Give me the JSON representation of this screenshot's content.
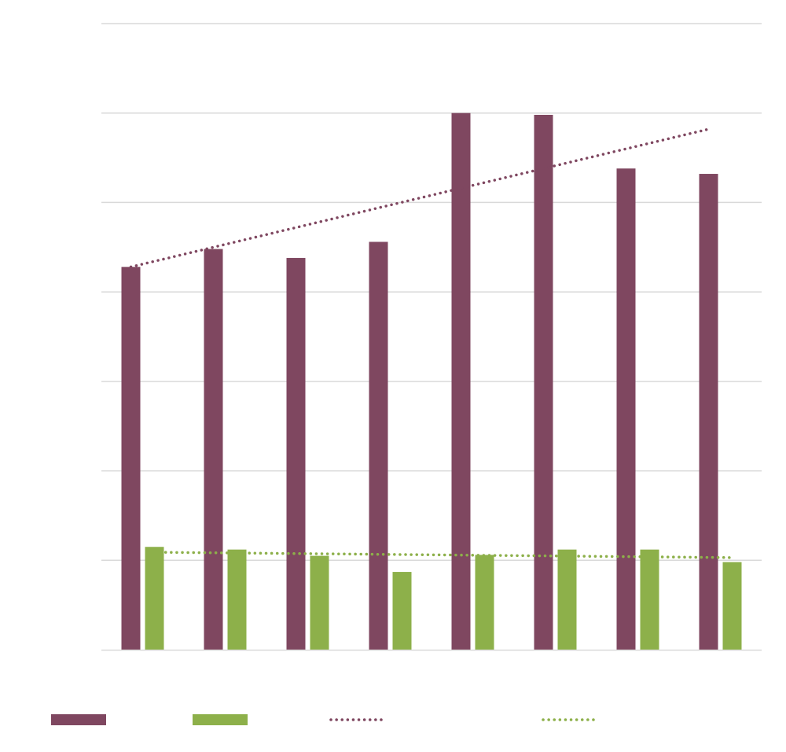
{
  "chart_data": {
    "type": "bar",
    "title": "",
    "xlabel": "",
    "ylabel": "",
    "categories": [
      "",
      "",
      "",
      "",
      "",
      "",
      "",
      ""
    ],
    "ylim": [
      0,
      7
    ],
    "grid": true,
    "series": [
      {
        "name": "",
        "color": "#7f4760",
        "values": [
          4.28,
          4.48,
          4.38,
          4.56,
          6.0,
          5.98,
          5.38,
          5.32
        ]
      },
      {
        "name": "",
        "color": "#8db04a",
        "values": [
          1.15,
          1.12,
          1.05,
          0.87,
          1.06,
          1.12,
          1.12,
          0.98
        ]
      }
    ],
    "trendlines": [
      {
        "name": "",
        "series": 0,
        "color": "#7f4760",
        "start": 4.28,
        "end": 5.82
      },
      {
        "name": "",
        "series": 1,
        "color": "#8db04a",
        "start": 1.09,
        "end": 1.03
      }
    ],
    "legend_position": "bottom"
  }
}
